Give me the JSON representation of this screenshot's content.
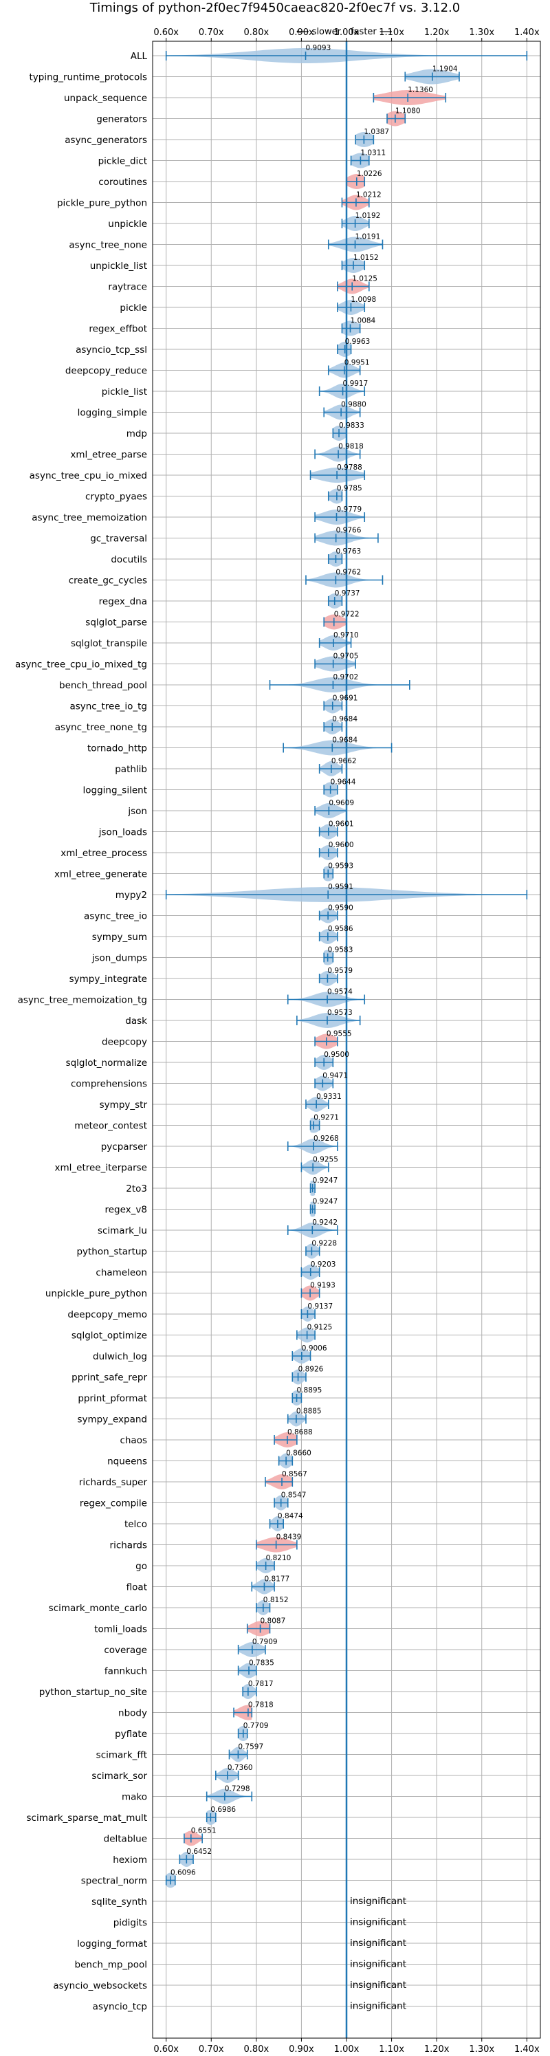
{
  "chart_data": {
    "type": "violin",
    "title": "Timings of python-2f0ec7f9450caeac820-2f0ec7f vs. 3.12.0",
    "direction_labels": {
      "slower": "⟵ slower",
      "faster": "faster ⟶"
    },
    "xlim": [
      0.57,
      1.43
    ],
    "x_ticks": [
      0.6,
      0.7,
      0.8,
      0.9,
      1.0,
      1.1,
      1.2,
      1.3,
      1.4
    ],
    "x_tick_labels": [
      "0.60x",
      "0.70x",
      "0.80x",
      "0.90x",
      "1.00x",
      "1.10x",
      "1.20x",
      "1.30x",
      "1.40x"
    ],
    "reference_line": 1.0,
    "insignificant_label": "insignificant",
    "colors": {
      "normal": "#a7c7e3",
      "highlight": "#f2a6a6",
      "line": "#1f77b4",
      "grid": "#b0b0b0"
    },
    "benchmarks": [
      {
        "name": "ALL",
        "value": 0.9093,
        "label": "0.9093",
        "min": 0.6,
        "max": 1.4,
        "spread": 0.12,
        "hl": false
      },
      {
        "name": "typing_runtime_protocols",
        "value": 1.1904,
        "label": "1.1904",
        "min": 1.13,
        "max": 1.25,
        "spread": 0.04,
        "hl": false
      },
      {
        "name": "unpack_sequence",
        "value": 1.136,
        "label": "1.1360",
        "min": 1.06,
        "max": 1.22,
        "spread": 0.05,
        "hl": true
      },
      {
        "name": "generators",
        "value": 1.108,
        "label": "1.1080",
        "min": 1.09,
        "max": 1.13,
        "spread": 0.02,
        "hl": true
      },
      {
        "name": "async_generators",
        "value": 1.0387,
        "label": "1.0387",
        "min": 1.02,
        "max": 1.06,
        "spread": 0.02,
        "hl": false
      },
      {
        "name": "pickle_dict",
        "value": 1.0311,
        "label": "1.0311",
        "min": 1.01,
        "max": 1.05,
        "spread": 0.02,
        "hl": false
      },
      {
        "name": "coroutines",
        "value": 1.0226,
        "label": "1.0226",
        "min": 1.0,
        "max": 1.04,
        "spread": 0.02,
        "hl": true
      },
      {
        "name": "pickle_pure_python",
        "value": 1.0212,
        "label": "1.0212",
        "min": 0.99,
        "max": 1.05,
        "spread": 0.02,
        "hl": true
      },
      {
        "name": "unpickle",
        "value": 1.0192,
        "label": "1.0192",
        "min": 0.99,
        "max": 1.05,
        "spread": 0.02,
        "hl": false
      },
      {
        "name": "async_tree_none",
        "value": 1.0191,
        "label": "1.0191",
        "min": 0.96,
        "max": 1.08,
        "spread": 0.03,
        "hl": false
      },
      {
        "name": "unpickle_list",
        "value": 1.0152,
        "label": "1.0152",
        "min": 0.99,
        "max": 1.04,
        "spread": 0.02,
        "hl": false
      },
      {
        "name": "raytrace",
        "value": 1.0125,
        "label": "1.0125",
        "min": 0.98,
        "max": 1.05,
        "spread": 0.02,
        "hl": true
      },
      {
        "name": "pickle",
        "value": 1.0098,
        "label": "1.0098",
        "min": 0.98,
        "max": 1.04,
        "spread": 0.02,
        "hl": false
      },
      {
        "name": "regex_effbot",
        "value": 1.0084,
        "label": "1.0084",
        "min": 0.99,
        "max": 1.03,
        "spread": 0.02,
        "hl": false
      },
      {
        "name": "asyncio_tcp_ssl",
        "value": 0.9963,
        "label": "0.9963",
        "min": 0.98,
        "max": 1.01,
        "spread": 0.015,
        "hl": false
      },
      {
        "name": "deepcopy_reduce",
        "value": 0.9951,
        "label": "0.9951",
        "min": 0.96,
        "max": 1.03,
        "spread": 0.02,
        "hl": false
      },
      {
        "name": "pickle_list",
        "value": 0.9917,
        "label": "0.9917",
        "min": 0.94,
        "max": 1.04,
        "spread": 0.02,
        "hl": false
      },
      {
        "name": "logging_simple",
        "value": 0.988,
        "label": "0.9880",
        "min": 0.95,
        "max": 1.03,
        "spread": 0.02,
        "hl": false
      },
      {
        "name": "mdp",
        "value": 0.9833,
        "label": "0.9833",
        "min": 0.97,
        "max": 1.0,
        "spread": 0.015,
        "hl": false
      },
      {
        "name": "xml_etree_parse",
        "value": 0.9818,
        "label": "0.9818",
        "min": 0.93,
        "max": 1.03,
        "spread": 0.02,
        "hl": false
      },
      {
        "name": "async_tree_cpu_io_mixed",
        "value": 0.9788,
        "label": "0.9788",
        "min": 0.92,
        "max": 1.04,
        "spread": 0.04,
        "hl": false
      },
      {
        "name": "crypto_pyaes",
        "value": 0.9785,
        "label": "0.9785",
        "min": 0.96,
        "max": 0.99,
        "spread": 0.015,
        "hl": false
      },
      {
        "name": "async_tree_memoization",
        "value": 0.9779,
        "label": "0.9779",
        "min": 0.93,
        "max": 1.04,
        "spread": 0.03,
        "hl": false
      },
      {
        "name": "gc_traversal",
        "value": 0.9766,
        "label": "0.9766",
        "min": 0.93,
        "max": 1.07,
        "spread": 0.03,
        "hl": false
      },
      {
        "name": "docutils",
        "value": 0.9763,
        "label": "0.9763",
        "min": 0.96,
        "max": 0.99,
        "spread": 0.015,
        "hl": false
      },
      {
        "name": "create_gc_cycles",
        "value": 0.9762,
        "label": "0.9762",
        "min": 0.91,
        "max": 1.08,
        "spread": 0.03,
        "hl": false
      },
      {
        "name": "regex_dna",
        "value": 0.9737,
        "label": "0.9737",
        "min": 0.96,
        "max": 0.99,
        "spread": 0.015,
        "hl": false
      },
      {
        "name": "sqlglot_parse",
        "value": 0.9722,
        "label": "0.9722",
        "min": 0.95,
        "max": 1.0,
        "spread": 0.02,
        "hl": true
      },
      {
        "name": "sqlglot_transpile",
        "value": 0.971,
        "label": "0.9710",
        "min": 0.94,
        "max": 1.01,
        "spread": 0.02,
        "hl": false
      },
      {
        "name": "async_tree_cpu_io_mixed_tg",
        "value": 0.9705,
        "label": "0.9705",
        "min": 0.93,
        "max": 1.02,
        "spread": 0.03,
        "hl": false
      },
      {
        "name": "bench_thread_pool",
        "value": 0.9702,
        "label": "0.9702",
        "min": 0.83,
        "max": 1.14,
        "spread": 0.04,
        "hl": false
      },
      {
        "name": "async_tree_io_tg",
        "value": 0.9691,
        "label": "0.9691",
        "min": 0.95,
        "max": 0.99,
        "spread": 0.015,
        "hl": false
      },
      {
        "name": "async_tree_none_tg",
        "value": 0.9684,
        "label": "0.9684",
        "min": 0.95,
        "max": 0.99,
        "spread": 0.015,
        "hl": false
      },
      {
        "name": "tornado_http",
        "value": 0.9684,
        "label": "0.9684",
        "min": 0.86,
        "max": 1.1,
        "spread": 0.04,
        "hl": false
      },
      {
        "name": "pathlib",
        "value": 0.9662,
        "label": "0.9662",
        "min": 0.94,
        "max": 0.99,
        "spread": 0.015,
        "hl": false
      },
      {
        "name": "logging_silent",
        "value": 0.9644,
        "label": "0.9644",
        "min": 0.95,
        "max": 0.98,
        "spread": 0.015,
        "hl": false
      },
      {
        "name": "json",
        "value": 0.9609,
        "label": "0.9609",
        "min": 0.93,
        "max": 1.0,
        "spread": 0.02,
        "hl": false
      },
      {
        "name": "json_loads",
        "value": 0.9601,
        "label": "0.9601",
        "min": 0.94,
        "max": 0.98,
        "spread": 0.015,
        "hl": false
      },
      {
        "name": "xml_etree_process",
        "value": 0.96,
        "label": "0.9600",
        "min": 0.94,
        "max": 0.98,
        "spread": 0.015,
        "hl": false
      },
      {
        "name": "xml_etree_generate",
        "value": 0.9593,
        "label": "0.9593",
        "min": 0.95,
        "max": 0.97,
        "spread": 0.015,
        "hl": false
      },
      {
        "name": "mypy2",
        "value": 0.9591,
        "label": "0.9591",
        "min": 0.6,
        "max": 1.4,
        "spread": 0.15,
        "hl": false
      },
      {
        "name": "async_tree_io",
        "value": 0.959,
        "label": "0.9590",
        "min": 0.94,
        "max": 0.98,
        "spread": 0.015,
        "hl": false
      },
      {
        "name": "sympy_sum",
        "value": 0.9586,
        "label": "0.9586",
        "min": 0.94,
        "max": 0.98,
        "spread": 0.015,
        "hl": false
      },
      {
        "name": "json_dumps",
        "value": 0.9583,
        "label": "0.9583",
        "min": 0.95,
        "max": 0.97,
        "spread": 0.015,
        "hl": false
      },
      {
        "name": "sympy_integrate",
        "value": 0.9579,
        "label": "0.9579",
        "min": 0.94,
        "max": 0.98,
        "spread": 0.015,
        "hl": false
      },
      {
        "name": "async_tree_memoization_tg",
        "value": 0.9574,
        "label": "0.9574",
        "min": 0.87,
        "max": 1.04,
        "spread": 0.03,
        "hl": false
      },
      {
        "name": "dask",
        "value": 0.9573,
        "label": "0.9573",
        "min": 0.89,
        "max": 1.03,
        "spread": 0.03,
        "hl": false
      },
      {
        "name": "deepcopy",
        "value": 0.9555,
        "label": "0.9555",
        "min": 0.93,
        "max": 0.98,
        "spread": 0.02,
        "hl": true
      },
      {
        "name": "sqlglot_normalize",
        "value": 0.95,
        "label": "0.9500",
        "min": 0.93,
        "max": 0.97,
        "spread": 0.015,
        "hl": false
      },
      {
        "name": "comprehensions",
        "value": 0.9471,
        "label": "0.9471",
        "min": 0.93,
        "max": 0.97,
        "spread": 0.015,
        "hl": false
      },
      {
        "name": "sympy_str",
        "value": 0.9331,
        "label": "0.9331",
        "min": 0.91,
        "max": 0.96,
        "spread": 0.015,
        "hl": false
      },
      {
        "name": "meteor_contest",
        "value": 0.9271,
        "label": "0.9271",
        "min": 0.92,
        "max": 0.94,
        "spread": 0.015,
        "hl": false
      },
      {
        "name": "pycparser",
        "value": 0.9268,
        "label": "0.9268",
        "min": 0.87,
        "max": 0.98,
        "spread": 0.02,
        "hl": false
      },
      {
        "name": "xml_etree_iterparse",
        "value": 0.9255,
        "label": "0.9255",
        "min": 0.9,
        "max": 0.96,
        "spread": 0.015,
        "hl": false
      },
      {
        "name": "2to3",
        "value": 0.9247,
        "label": "0.9247",
        "min": 0.92,
        "max": 0.93,
        "spread": 0.012,
        "hl": false
      },
      {
        "name": "regex_v8",
        "value": 0.9247,
        "label": "0.9247",
        "min": 0.92,
        "max": 0.93,
        "spread": 0.012,
        "hl": false
      },
      {
        "name": "scimark_lu",
        "value": 0.9242,
        "label": "0.9242",
        "min": 0.87,
        "max": 0.98,
        "spread": 0.02,
        "hl": false
      },
      {
        "name": "python_startup",
        "value": 0.9228,
        "label": "0.9228",
        "min": 0.91,
        "max": 0.94,
        "spread": 0.012,
        "hl": false
      },
      {
        "name": "chameleon",
        "value": 0.9203,
        "label": "0.9203",
        "min": 0.9,
        "max": 0.94,
        "spread": 0.015,
        "hl": false
      },
      {
        "name": "unpickle_pure_python",
        "value": 0.9193,
        "label": "0.9193",
        "min": 0.9,
        "max": 0.94,
        "spread": 0.015,
        "hl": true
      },
      {
        "name": "deepcopy_memo",
        "value": 0.9137,
        "label": "0.9137",
        "min": 0.9,
        "max": 0.93,
        "spread": 0.012,
        "hl": false
      },
      {
        "name": "sqlglot_optimize",
        "value": 0.9125,
        "label": "0.9125",
        "min": 0.89,
        "max": 0.93,
        "spread": 0.015,
        "hl": false
      },
      {
        "name": "dulwich_log",
        "value": 0.9006,
        "label": "0.9006",
        "min": 0.88,
        "max": 0.92,
        "spread": 0.015,
        "hl": false
      },
      {
        "name": "pprint_safe_repr",
        "value": 0.8926,
        "label": "0.8926",
        "min": 0.88,
        "max": 0.91,
        "spread": 0.012,
        "hl": false
      },
      {
        "name": "pprint_pformat",
        "value": 0.8895,
        "label": "0.8895",
        "min": 0.88,
        "max": 0.9,
        "spread": 0.012,
        "hl": false
      },
      {
        "name": "sympy_expand",
        "value": 0.8885,
        "label": "0.8885",
        "min": 0.87,
        "max": 0.91,
        "spread": 0.012,
        "hl": false
      },
      {
        "name": "chaos",
        "value": 0.8688,
        "label": "0.8688",
        "min": 0.84,
        "max": 0.89,
        "spread": 0.02,
        "hl": true
      },
      {
        "name": "nqueens",
        "value": 0.866,
        "label": "0.8660",
        "min": 0.85,
        "max": 0.88,
        "spread": 0.012,
        "hl": false
      },
      {
        "name": "richards_super",
        "value": 0.8567,
        "label": "0.8567",
        "min": 0.82,
        "max": 0.88,
        "spread": 0.02,
        "hl": true
      },
      {
        "name": "regex_compile",
        "value": 0.8547,
        "label": "0.8547",
        "min": 0.84,
        "max": 0.87,
        "spread": 0.012,
        "hl": false
      },
      {
        "name": "telco",
        "value": 0.8474,
        "label": "0.8474",
        "min": 0.83,
        "max": 0.86,
        "spread": 0.012,
        "hl": false
      },
      {
        "name": "richards",
        "value": 0.8439,
        "label": "0.8439",
        "min": 0.8,
        "max": 0.89,
        "spread": 0.03,
        "hl": true
      },
      {
        "name": "go",
        "value": 0.821,
        "label": "0.8210",
        "min": 0.8,
        "max": 0.84,
        "spread": 0.015,
        "hl": false
      },
      {
        "name": "float",
        "value": 0.8177,
        "label": "0.8177",
        "min": 0.79,
        "max": 0.84,
        "spread": 0.015,
        "hl": false
      },
      {
        "name": "scimark_monte_carlo",
        "value": 0.8152,
        "label": "0.8152",
        "min": 0.8,
        "max": 0.83,
        "spread": 0.012,
        "hl": false
      },
      {
        "name": "tomli_loads",
        "value": 0.8087,
        "label": "0.8087",
        "min": 0.78,
        "max": 0.83,
        "spread": 0.02,
        "hl": true
      },
      {
        "name": "coverage",
        "value": 0.7909,
        "label": "0.7909",
        "min": 0.76,
        "max": 0.82,
        "spread": 0.02,
        "hl": false
      },
      {
        "name": "fannkuch",
        "value": 0.7835,
        "label": "0.7835",
        "min": 0.76,
        "max": 0.8,
        "spread": 0.015,
        "hl": false
      },
      {
        "name": "python_startup_no_site",
        "value": 0.7817,
        "label": "0.7817",
        "min": 0.77,
        "max": 0.8,
        "spread": 0.012,
        "hl": false
      },
      {
        "name": "nbody",
        "value": 0.7818,
        "label": "0.7818",
        "min": 0.75,
        "max": 0.79,
        "spread": 0.02,
        "hl": true
      },
      {
        "name": "pyflate",
        "value": 0.7709,
        "label": "0.7709",
        "min": 0.76,
        "max": 0.78,
        "spread": 0.012,
        "hl": false
      },
      {
        "name": "scimark_fft",
        "value": 0.7597,
        "label": "0.7597",
        "min": 0.74,
        "max": 0.78,
        "spread": 0.012,
        "hl": false
      },
      {
        "name": "scimark_sor",
        "value": 0.736,
        "label": "0.7360",
        "min": 0.71,
        "max": 0.76,
        "spread": 0.015,
        "hl": false
      },
      {
        "name": "mako",
        "value": 0.7298,
        "label": "0.7298",
        "min": 0.69,
        "max": 0.79,
        "spread": 0.02,
        "hl": false
      },
      {
        "name": "scimark_sparse_mat_mult",
        "value": 0.6986,
        "label": "0.6986",
        "min": 0.69,
        "max": 0.71,
        "spread": 0.012,
        "hl": false
      },
      {
        "name": "deltablue",
        "value": 0.6551,
        "label": "0.6551",
        "min": 0.64,
        "max": 0.68,
        "spread": 0.015,
        "hl": true
      },
      {
        "name": "hexiom",
        "value": 0.6452,
        "label": "0.6452",
        "min": 0.63,
        "max": 0.66,
        "spread": 0.012,
        "hl": false
      },
      {
        "name": "spectral_norm",
        "value": 0.6096,
        "label": "0.6096",
        "min": 0.6,
        "max": 0.62,
        "spread": 0.012,
        "hl": false
      },
      {
        "name": "sqlite_synth",
        "insignificant": true
      },
      {
        "name": "pidigits",
        "insignificant": true
      },
      {
        "name": "logging_format",
        "insignificant": true
      },
      {
        "name": "bench_mp_pool",
        "insignificant": true
      },
      {
        "name": "asyncio_websockets",
        "insignificant": true
      },
      {
        "name": "asyncio_tcp",
        "insignificant": true
      }
    ]
  }
}
